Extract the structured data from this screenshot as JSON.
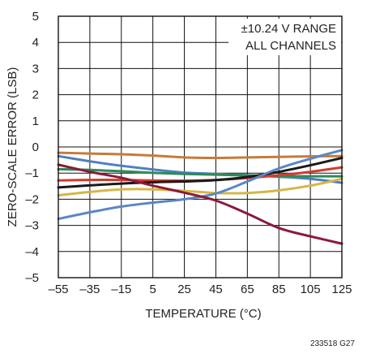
{
  "chart_data": {
    "type": "line",
    "title": "",
    "xlabel": "TEMPERATURE (°C)",
    "ylabel": "ZERO-SCALE ERROR (LSB)",
    "xlim": [
      -55,
      125
    ],
    "ylim": [
      -5,
      5
    ],
    "x_ticks": [
      -55,
      -35,
      -15,
      5,
      25,
      45,
      65,
      85,
      105,
      125
    ],
    "y_ticks": [
      5,
      4,
      3,
      2,
      1,
      0,
      -1,
      -2,
      -3,
      -4,
      -5
    ],
    "x_tick_labels": [
      "–55",
      "–35",
      "–15",
      "5",
      "25",
      "45",
      "65",
      "85",
      "105",
      "125"
    ],
    "y_tick_labels": [
      "5",
      "4",
      "3",
      "2",
      "1",
      "0",
      "–1",
      "–2",
      "–3",
      "–4",
      "–5"
    ],
    "grid": true,
    "annotation_lines": [
      "±10.24 V RANGE",
      "ALL CHANNELS"
    ],
    "figure_code": "233518 G27",
    "x": [
      -55,
      -35,
      -15,
      5,
      25,
      45,
      65,
      85,
      105,
      125
    ],
    "series": [
      {
        "color": "#c77a3a",
        "values": [
          -0.22,
          -0.25,
          -0.28,
          -0.33,
          -0.4,
          -0.42,
          -0.4,
          -0.38,
          -0.36,
          -0.35
        ]
      },
      {
        "color": "#4f7fc0",
        "values": [
          -0.35,
          -0.55,
          -0.72,
          -0.86,
          -0.98,
          -1.03,
          -1.08,
          -1.14,
          -1.22,
          -1.37
        ]
      },
      {
        "color": "#2e8b57",
        "values": [
          -0.85,
          -0.88,
          -0.93,
          -0.99,
          -1.03,
          -1.06,
          -1.09,
          -1.11,
          -1.12,
          -1.12
        ]
      },
      {
        "color": "#d43a2f",
        "values": [
          -1.28,
          -1.26,
          -1.26,
          -1.28,
          -1.29,
          -1.26,
          -1.19,
          -1.08,
          -0.95,
          -0.78
        ]
      },
      {
        "color": "#1a1a1a",
        "values": [
          -1.55,
          -1.47,
          -1.4,
          -1.35,
          -1.32,
          -1.27,
          -1.15,
          -0.95,
          -0.7,
          -0.42
        ]
      },
      {
        "color": "#d6b648",
        "values": [
          -1.85,
          -1.72,
          -1.62,
          -1.62,
          -1.68,
          -1.76,
          -1.76,
          -1.66,
          -1.48,
          -1.22
        ]
      },
      {
        "color": "#5b86c4",
        "values": [
          -2.75,
          -2.5,
          -2.28,
          -2.13,
          -2.0,
          -1.78,
          -1.32,
          -0.82,
          -0.45,
          -0.12
        ]
      },
      {
        "color": "#8b1a3a",
        "values": [
          -0.68,
          -0.95,
          -1.18,
          -1.48,
          -1.75,
          -2.05,
          -2.55,
          -3.1,
          -3.42,
          -3.7
        ]
      }
    ]
  }
}
